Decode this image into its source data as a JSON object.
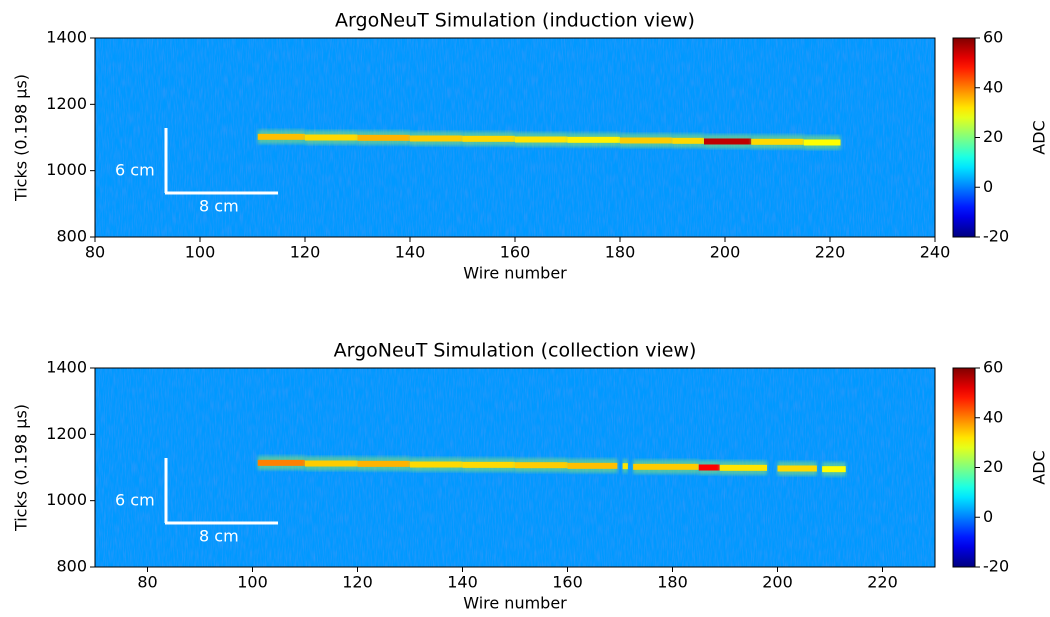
{
  "chart_data": [
    {
      "type": "heatmap",
      "title": "ArgoNeuT Simulation (induction view)",
      "xlabel": "Wire number",
      "ylabel": "Ticks (0.198 μs)",
      "xlim": [
        80,
        240
      ],
      "xticks": [
        80,
        100,
        120,
        140,
        160,
        180,
        200,
        220,
        240
      ],
      "ylim": [
        800,
        1400
      ],
      "yticks": [
        800,
        1000,
        1200,
        1400
      ],
      "colormap": "jet",
      "clim": [
        -20,
        60
      ],
      "cticks": [
        -20,
        0,
        20,
        40,
        60
      ],
      "colorbar_label": "ADC",
      "background_adc": 2,
      "wire_edges": [
        111,
        120,
        130,
        140,
        150,
        160,
        170,
        180,
        190,
        196,
        205,
        215,
        222
      ],
      "track_y": [
        1102,
        1100,
        1099,
        1097,
        1096,
        1094,
        1093,
        1091,
        1090,
        1088,
        1087,
        1085
      ],
      "track_adc": [
        35,
        33,
        36,
        34,
        33,
        32,
        31,
        34,
        33,
        55,
        33,
        30
      ],
      "annotations": [
        "6 cm",
        "8 cm"
      ]
    },
    {
      "type": "heatmap",
      "title": "ArgoNeuT Simulation (collection view)",
      "xlabel": "Wire number",
      "ylabel": "Ticks (0.198 μs)",
      "xlim": [
        70,
        230
      ],
      "xticks": [
        80,
        100,
        120,
        140,
        160,
        180,
        200,
        220
      ],
      "ylim": [
        800,
        1400
      ],
      "yticks": [
        800,
        1000,
        1200,
        1400
      ],
      "colormap": "jet",
      "clim": [
        -20,
        60
      ],
      "cticks": [
        -20,
        0,
        20,
        40,
        60
      ],
      "colorbar_label": "ADC",
      "background_adc": 2,
      "wire_edges": [
        101,
        110,
        120,
        130,
        140,
        150,
        160,
        169.5,
        170.5,
        171.5,
        172.5,
        185,
        189,
        198,
        200,
        207.5,
        208.5,
        213
      ],
      "track_y": [
        1114,
        1112,
        1111,
        1109,
        1108,
        1107,
        1105,
        1104,
        1104,
        1103,
        1102,
        1100,
        1099,
        1098,
        1097,
        1096,
        1095
      ],
      "track_adc": [
        40,
        34,
        36,
        33,
        33,
        34,
        35,
        null,
        32,
        null,
        34,
        50,
        32,
        null,
        33,
        null,
        30
      ],
      "annotations": [
        "6 cm",
        "8 cm"
      ]
    }
  ]
}
